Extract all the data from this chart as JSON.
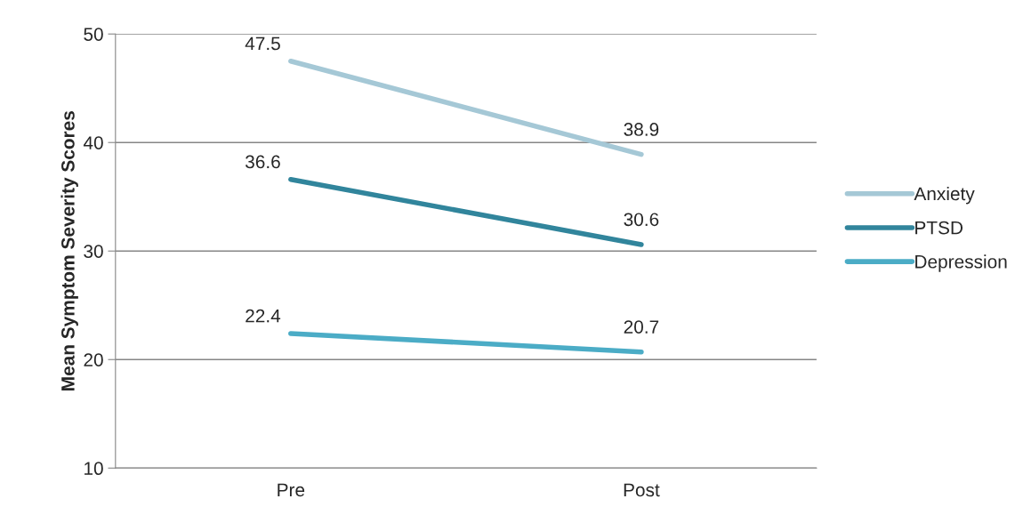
{
  "chart_data": {
    "type": "line",
    "ylabel": "Mean Symptom Severity Scores",
    "categories": [
      "Pre",
      "Post"
    ],
    "series": [
      {
        "name": "Anxiety",
        "color": "#a5c8d6",
        "values": [
          47.5,
          38.9
        ]
      },
      {
        "name": "PTSD",
        "color": "#31859c",
        "values": [
          36.6,
          30.6
        ]
      },
      {
        "name": "Depression",
        "color": "#4bacc6",
        "values": [
          22.4,
          20.7
        ]
      }
    ],
    "ylim": [
      10,
      50
    ],
    "yticks": [
      10,
      20,
      30,
      40,
      50
    ],
    "grid": "y",
    "legend": "right",
    "data_labels": true,
    "marker": "none",
    "line_style": "solid"
  }
}
